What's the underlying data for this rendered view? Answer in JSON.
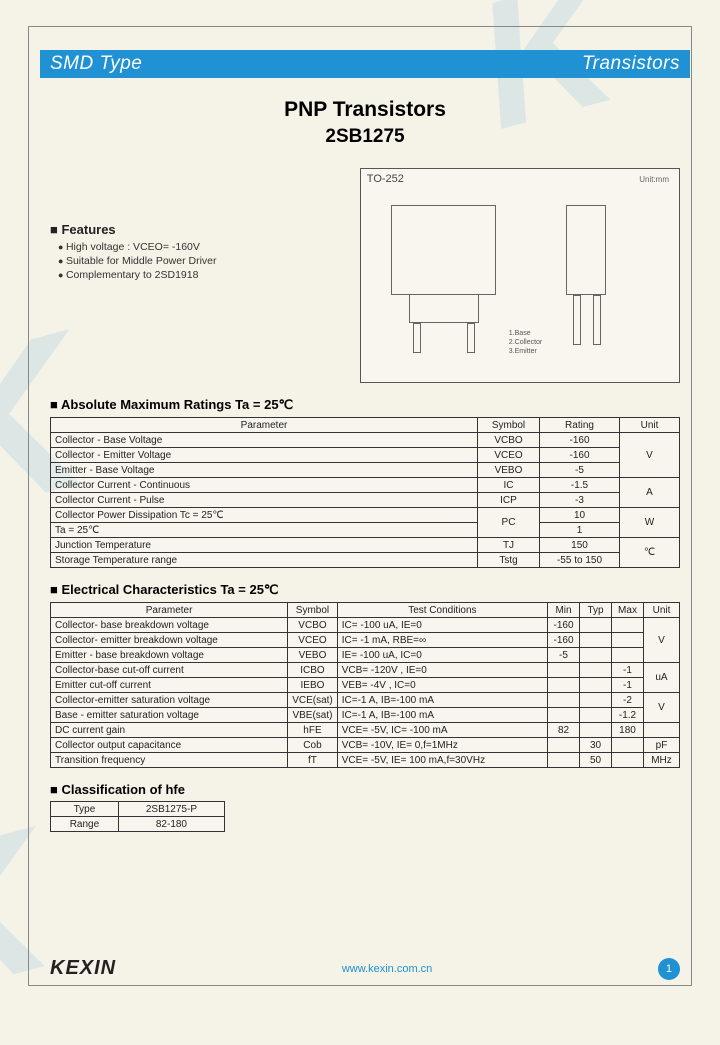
{
  "header": {
    "left": "SMD Type",
    "right": "Transistors"
  },
  "title": "PNP  Transistors",
  "subtitle": "2SB1275",
  "package_label": "TO-252",
  "package_unit": "Unit:mm",
  "features_title": "Features",
  "features": [
    "High voltage :    VCEO= -160V",
    "Suitable for Middle Power Driver",
    "Complementary to 2SD1918"
  ],
  "abs_title": "Absolute Maximum Ratings Ta = 25℃",
  "abs_headers": [
    "Parameter",
    "Symbol",
    "Rating",
    "Unit"
  ],
  "abs_rows": [
    {
      "param": "Collector - Base Voltage",
      "sym": "VCBO",
      "rating": "-160",
      "unit": "V",
      "unit_rowspan": 3
    },
    {
      "param": "Collector - Emitter Voltage",
      "sym": "VCEO",
      "rating": "-160"
    },
    {
      "param": "Emitter - Base Voltage",
      "sym": "VEBO",
      "rating": "-5"
    },
    {
      "param": "Collector Current  - Continuous",
      "sym": "IC",
      "rating": "-1.5",
      "unit": "A",
      "unit_rowspan": 2
    },
    {
      "param": "Collector Current  - Pulse",
      "sym": "ICP",
      "rating": "-3"
    },
    {
      "param": "Collector Power Dissipation          Tc = 25℃",
      "sym": "PC",
      "sym_rowspan": 2,
      "rating": "10",
      "unit": "W",
      "unit_rowspan": 2
    },
    {
      "param": "                                                    Ta = 25℃",
      "rating": "1"
    },
    {
      "param": "Junction Temperature",
      "sym": "TJ",
      "rating": "150",
      "unit": "℃",
      "unit_rowspan": 2
    },
    {
      "param": "Storage Temperature range",
      "sym": "Tstg",
      "rating": "-55 to 150"
    }
  ],
  "ec_title": "Electrical Characteristics Ta = 25℃",
  "ec_headers": [
    "Parameter",
    "Symbol",
    "Test Conditions",
    "Min",
    "Typ",
    "Max",
    "Unit"
  ],
  "ec_rows": [
    {
      "p": "Collector- base breakdown voltage",
      "s": "VCBO",
      "tc": "IC= -100 uA,   IE=0",
      "min": "-160",
      "typ": "",
      "max": "",
      "unit": "V",
      "ur": 3
    },
    {
      "p": "Collector- emitter breakdown voltage",
      "s": "VCEO",
      "tc": "IC= -1 mA,   RBE=∞",
      "min": "-160",
      "typ": "",
      "max": ""
    },
    {
      "p": "Emitter - base breakdown voltage",
      "s": "VEBO",
      "tc": "IE= -100 uA,    IC=0",
      "min": "-5",
      "typ": "",
      "max": ""
    },
    {
      "p": "Collector-base cut-off current",
      "s": "ICBO",
      "tc": "VCB= -120V , IE=0",
      "min": "",
      "typ": "",
      "max": "-1",
      "unit": "uA",
      "ur": 2
    },
    {
      "p": "Emitter cut-off current",
      "s": "IEBO",
      "tc": "VEB= -4V , IC=0",
      "min": "",
      "typ": "",
      "max": "-1"
    },
    {
      "p": "Collector-emitter saturation voltage",
      "s": "VCE(sat)",
      "tc": "IC=-1 A, IB=-100 mA",
      "min": "",
      "typ": "",
      "max": "-2",
      "unit": "V",
      "ur": 2
    },
    {
      "p": "Base - emitter saturation voltage",
      "s": "VBE(sat)",
      "tc": "IC=-1 A, IB=-100 mA",
      "min": "",
      "typ": "",
      "max": "-1.2"
    },
    {
      "p": "DC current gain",
      "s": "hFE",
      "tc": "VCE= -5V, IC= -100 mA",
      "min": "82",
      "typ": "",
      "max": "180",
      "unit": "",
      "ur": 1
    },
    {
      "p": "Collector output capacitance",
      "s": "Cob",
      "tc": "VCB= -10V, IE= 0,f=1MHz",
      "min": "",
      "typ": "30",
      "max": "",
      "unit": "pF",
      "ur": 1
    },
    {
      "p": "Transition frequency",
      "s": "fT",
      "tc": "VCE= -5V, IE=  100 mA,f=30VHz",
      "min": "",
      "typ": "50",
      "max": "",
      "unit": "MHz",
      "ur": 1
    }
  ],
  "class_title": "Classification of hfe",
  "class_table": {
    "r1": [
      "Type",
      "2SB1275-P"
    ],
    "r2": [
      "Range",
      "82-180"
    ]
  },
  "footer": {
    "brand": "KEXIN",
    "url": "www.kexin.com.cn",
    "page": "1"
  }
}
